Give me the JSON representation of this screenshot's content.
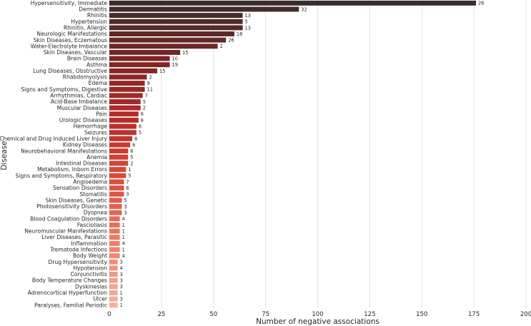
{
  "chart_data": {
    "type": "bar",
    "orientation": "horizontal",
    "xlabel": "Number of negative associations",
    "ylabel": "Disease",
    "xlim": [
      0,
      200
    ],
    "xticks": [
      0,
      25,
      50,
      75,
      100,
      125,
      150,
      175,
      200
    ],
    "grid": "vertical",
    "palette": "dark-to-light red (top to bottom)",
    "categories": [
      "Hypersensitivity, Immediate",
      "Dermatitis",
      "Rhinitis",
      "Hypertension",
      "Rhinitis, Allergic",
      "Neurologic Manifestations",
      "Skin Diseases, Eczematous",
      "Water-Electrolyte Imbalance",
      "Skin Diseases, Vascular",
      "Brain Diseases",
      "Asthma",
      "Lung Diseases, Obstructive",
      "Rhabdomyolysis",
      "Edema",
      "Signs and Symptoms, Digestive",
      "Arrhythmias, Cardiac",
      "Acid-Base Imbalance",
      "Muscular Diseases",
      "Pain",
      "Urologic Diseases",
      "Hemorrhage",
      "Seizures",
      "Chemical and Drug Induced Liver Injury",
      "Kidney Diseases",
      "Neurobehavioral Manifestations",
      "Anemia",
      "Intestinal Diseases",
      "Metabolism, Inborn Errors",
      "Signs and Symptoms, Respiratory",
      "Angioedema",
      "Sensation Disorders",
      "Stomatitis",
      "Skin Diseases, Genetic",
      "Photosensitivity Disorders",
      "Dyspnea",
      "Blood Coagulation Disorders",
      "Fascioliasis",
      "Neuromuscular Manifestations",
      "Liver Diseases, Parasitic",
      "Inflammation",
      "Trematode Infections",
      "Body Weight",
      "Drug Hypersensitivity",
      "Hypotension",
      "Conjunctivitis",
      "Body Temperature Changes",
      "Dyskinesias",
      "Adrenocortical Hyperfunction",
      "Ulcer",
      "Paralyses, Familial Periodic"
    ],
    "values": [
      176,
      91,
      64,
      64,
      64,
      60,
      56,
      52,
      34,
      29,
      29,
      23,
      18,
      17,
      17,
      16,
      15,
      15,
      14,
      14,
      13,
      13,
      11,
      10,
      9,
      9,
      9,
      8,
      8,
      7,
      7,
      7,
      6,
      6,
      6,
      5,
      5,
      5,
      5,
      5,
      5,
      5,
      4,
      4,
      4,
      4,
      4,
      4,
      4,
      4
    ],
    "bar_labels": [
      26,
      32,
      13,
      5,
      13,
      18,
      26,
      2,
      15,
      10,
      19,
      15,
      2,
      9,
      11,
      7,
      5,
      2,
      6,
      8,
      6,
      5,
      8,
      6,
      6,
      5,
      2,
      1,
      5,
      7,
      6,
      3,
      5,
      3,
      3,
      4,
      1,
      1,
      1,
      4,
      1,
      4,
      3,
      4,
      3,
      3,
      3,
      1,
      3,
      1
    ]
  }
}
